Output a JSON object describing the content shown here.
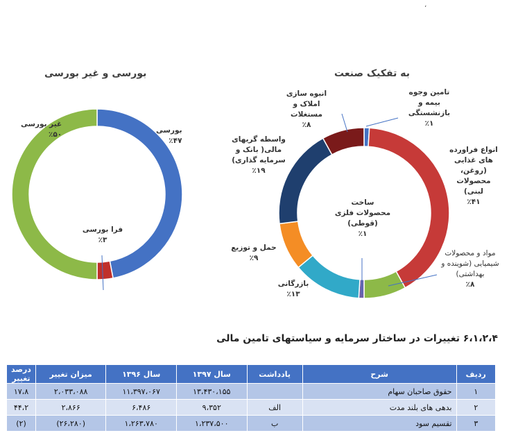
{
  "top_fragment": "،",
  "chart_data": [
    {
      "type": "pie",
      "title": "بورسی و غیر بورسی",
      "slices": [
        {
          "name": "بورسی",
          "value": 47,
          "pct_label": "٪۴۷",
          "color": "#4472c4"
        },
        {
          "name": "فرا بورسی",
          "value": 3,
          "pct_label": "٪۳",
          "color": "#c0302b"
        },
        {
          "name": "غیر بورسی",
          "value": 50,
          "pct_label": "٪۵۰",
          "color": "#8db948"
        }
      ]
    },
    {
      "type": "pie",
      "title": "به تفکیک صنعت",
      "slices": [
        {
          "name": "تامین وجوه بیمه و بازنشستگی",
          "value": 1,
          "pct_label": "٪۱",
          "color": "#4472c4"
        },
        {
          "name": "انواع فراورده های غذایی (روغن، محصولات لبنی)",
          "value": 41,
          "pct_label": "٪۴۱",
          "color": "#c63a38"
        },
        {
          "name": "مواد و محصولات شیمیایی (شوینده و بهداشتی)",
          "value": 8,
          "pct_label": "٪۸",
          "color": "#8db948"
        },
        {
          "name": "ساخت محصولات فلزی (قوطی)",
          "value": 1,
          "pct_label": "٪۱",
          "color": "#7060a8"
        },
        {
          "name": "بازرگانی",
          "value": 13,
          "pct_label": "٪۱۳",
          "color": "#31a9c8"
        },
        {
          "name": "حمل و توزیع",
          "value": 9,
          "pct_label": "٪۹",
          "color": "#f48d25"
        },
        {
          "name": "واسطه گریهای مالی( بانک و سرمایه گذاری)",
          "value": 19,
          "pct_label": "٪۱۹",
          "color": "#1f3f6e"
        },
        {
          "name": "انبوه سازی املاک و مستغلات",
          "value": 8,
          "pct_label": "٪۸",
          "color": "#7a1a1a"
        }
      ]
    }
  ],
  "labels": {
    "left": {
      "bourse": [
        "بورسی"
      ],
      "farabourse": [
        "فرا بورسی"
      ],
      "gheir": [
        "غیر بورسی"
      ]
    },
    "right": {
      "tamin": [
        "تامین وجوه",
        "بیمه و",
        "بازنشستگی"
      ],
      "anva": [
        "انواع فراورده",
        "های غذایی",
        "(روغن،",
        "محصولات",
        "لبنی)"
      ],
      "mavad": [
        "مواد و محصولات",
        "شیمیایی (شوینده و",
        "بهداشتی)"
      ],
      "sakht": [
        "ساخت",
        "محصولات فلزی",
        "(قوطی)"
      ],
      "bazargani": [
        "بازرگانی"
      ],
      "haml": [
        "حمل و توزیع"
      ],
      "vasete": [
        "واسطه گریهای",
        "مالی( بانک و",
        "سرمایه گذاری)"
      ],
      "anbooh": [
        "انبوه سازی",
        "املاک و",
        "مستغلات"
      ]
    }
  },
  "section": {
    "title": "۶،۱،۲،۴ تغییرات در ساختار سرمایه و سیاستهای تامین مالی"
  },
  "table": {
    "headers": [
      "ردیف",
      "شرح",
      "یادداشت",
      "سال ۱۳۹۷",
      "سال ۱۳۹۶",
      "میزان تغییر",
      "درصد تغییر"
    ],
    "rows": [
      [
        "۱",
        "حقوق صاحبان سهام",
        "",
        "۱۳،۴۳۰،۱۵۵",
        "۱۱،۳۹۷،۰۶۷",
        "۲،۰۳۳،۰۸۸",
        "۱۷،۸"
      ],
      [
        "۲",
        "بدهی های بلند مدت",
        "الف",
        "۹،۳۵۲",
        "۶،۴۸۶",
        "۲،۸۶۶",
        "۴۴،۲"
      ],
      [
        "۳",
        "تقسیم سود",
        "ب",
        "۱،۲۳۷،۵۰۰",
        "۱،۲۶۳،۷۸۰",
        "(۲۶،۲۸۰)",
        "(۲)"
      ]
    ]
  }
}
